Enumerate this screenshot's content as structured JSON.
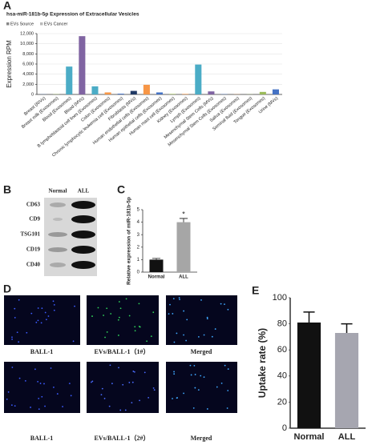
{
  "panels": {
    "a": "A",
    "b": "B",
    "c": "C",
    "d": "D",
    "e": "E"
  },
  "blot": {
    "columns": [
      "Normal",
      "ALL"
    ],
    "rows": [
      "CD63",
      "CD9",
      "TSG101",
      "CD19",
      "CD40"
    ]
  },
  "images": {
    "labels": [
      "BALL-1",
      "EVs/BALL-1（1#）",
      "Merged",
      "BALL-1",
      "EVs/BALL-1（2#）",
      "Merged"
    ]
  },
  "chart_data": [
    {
      "type": "bar",
      "title": "hsa-miR-181b-5p Expression of Extracellular Vesicles",
      "legend_labels": [
        "EVs Source",
        "EVs Cancer"
      ],
      "ylabel": "Expression RPM",
      "categories": [
        "Breast (RIVs)",
        "Breast milk (Exosomes)",
        "Blood (Exosomes)",
        "Blood (MVs)",
        "B lymphoblastoid cell lines (Exosomes)",
        "Colon (Exosomes)",
        "Chronic lymphocytic leukemia cell (Exosomes)",
        "Fibroblasts (MVs)",
        "Human endothelial cells (Exosomes)",
        "Human epithelial cells (Exosomes)",
        "Human mast cell (Exosomes)",
        "Kidney (Exosomes)",
        "Lymph (Exosomes)",
        "Mesenchymal Stem Cells (MVs)",
        "Mesenchymal Stem Cells (Exosomes)",
        "Saliva (Exosomes)",
        "Seminal fluid (Exosomes)",
        "Tongue (Exosomes)",
        "Urine (MVs)"
      ],
      "values": [
        30,
        50,
        5500,
        11500,
        1600,
        400,
        150,
        700,
        1900,
        400,
        100,
        100,
        5900,
        600,
        50,
        30,
        30,
        500,
        1000
      ],
      "colors": [
        "#4472c4",
        "#9bbb59",
        "#4bacc6",
        "#8064a2",
        "#4bacc6",
        "#f79646",
        "#4472c4",
        "#1f3864",
        "#f79646",
        "#4472c4",
        "#9bbb59",
        "#f79646",
        "#4bacc6",
        "#8064a2",
        "#4472c4",
        "#f79646",
        "#9bbb59",
        "#9bbb59",
        "#4472c4"
      ],
      "ylim": [
        0,
        12000
      ],
      "yticks": [
        0,
        {
          "value": 2000,
          "label": "2,000"
        },
        {
          "value": 4000,
          "label": "4,000"
        },
        {
          "value": 6000,
          "label": "6,000"
        },
        {
          "value": 8000,
          "label": "8,000"
        },
        {
          "value": 10000,
          "label": "10,000"
        },
        {
          "value": 12000,
          "label": "12,000"
        }
      ],
      "grid": true
    },
    {
      "type": "bar",
      "ylabel": "Relative expression of miR-181b-5p",
      "categories": [
        "Normal",
        "ALL"
      ],
      "values": [
        1,
        4
      ],
      "errors": [
        0.1,
        0.3
      ],
      "colors": [
        "#111111",
        "#a6a6a6"
      ],
      "annotation": "*",
      "ylim": [
        0,
        5
      ],
      "yticks": [
        0,
        1,
        2,
        3,
        4,
        5
      ],
      "grid": false
    },
    {
      "type": "bar",
      "ylabel": "Uptake rate (%)",
      "categories": [
        "Normal",
        "ALL"
      ],
      "values": [
        81,
        73
      ],
      "errors": [
        8,
        7
      ],
      "colors": [
        "#111111",
        "#a6a6b0"
      ],
      "ylim": [
        0,
        100
      ],
      "yticks": [
        0,
        20,
        40,
        60,
        80,
        100
      ],
      "grid": false
    }
  ]
}
